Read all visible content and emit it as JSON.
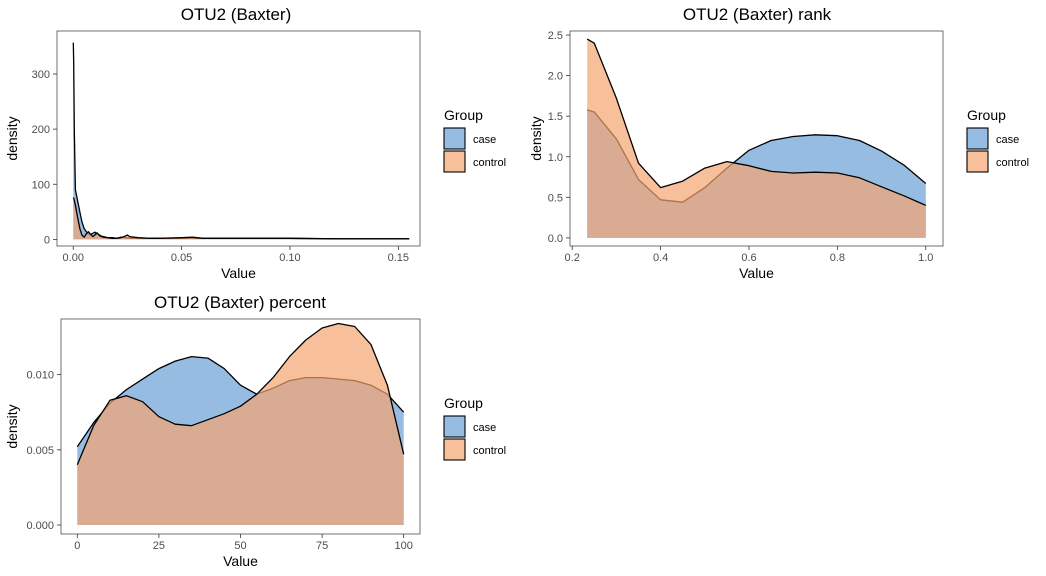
{
  "colors": {
    "case": "#6B9FD6",
    "control": "#F5A470",
    "fill_alpha": 0.7,
    "line": "#000000"
  },
  "legend": {
    "title": "Group",
    "placement": "right"
  },
  "chart_data": [
    {
      "type": "area",
      "title": "OTU2 (Baxter)",
      "xlabel": "Value",
      "ylabel": "density",
      "grid": false,
      "xlim": [
        -0.0075,
        0.16
      ],
      "ylim": [
        -12,
        378
      ],
      "xticks": [
        0.0,
        0.05,
        0.1,
        0.15
      ],
      "xtick_labels": [
        "0.00",
        "0.05",
        "0.10",
        "0.15"
      ],
      "yticks": [
        0,
        100,
        200,
        300
      ],
      "ytick_labels": [
        "0",
        "100",
        "200",
        "300"
      ],
      "legend": [
        "case",
        "control"
      ],
      "series": [
        {
          "name": "case",
          "x": [
            0,
            0.0002,
            0.0005,
            0.001,
            0.002,
            0.003,
            0.004,
            0.005,
            0.006,
            0.007,
            0.008,
            0.009,
            0.01,
            0.011,
            0.012,
            0.013,
            0.014,
            0.015,
            0.016,
            0.018,
            0.02,
            0.022,
            0.024,
            0.026,
            0.03,
            0.035,
            0.04,
            0.05,
            0.06,
            0.07,
            0.08,
            0.09,
            0.1,
            0.12,
            0.14,
            0.155
          ],
          "y": [
            357,
            320,
            200,
            90,
            70,
            50,
            32,
            20,
            14,
            10,
            9,
            11,
            13,
            10,
            8,
            6,
            5,
            4,
            3,
            3,
            2,
            4,
            3,
            2,
            2,
            2,
            2,
            2,
            2,
            2,
            2,
            2,
            2,
            1,
            1,
            1
          ]
        },
        {
          "name": "control",
          "x": [
            0,
            0.0003,
            0.001,
            0.002,
            0.003,
            0.004,
            0.005,
            0.006,
            0.007,
            0.008,
            0.009,
            0.01,
            0.011,
            0.012,
            0.013,
            0.014,
            0.016,
            0.018,
            0.02,
            0.022,
            0.024,
            0.025,
            0.026,
            0.03,
            0.035,
            0.04,
            0.05,
            0.055,
            0.06,
            0.07,
            0.08,
            0.09,
            0.1,
            0.12,
            0.14,
            0.155
          ],
          "y": [
            76,
            74,
            62,
            40,
            20,
            8,
            4,
            10,
            14,
            9,
            5,
            8,
            12,
            7,
            5,
            4,
            3,
            2,
            2,
            3,
            6,
            8,
            5,
            3,
            2,
            2,
            3,
            4,
            2,
            2,
            2,
            2,
            2,
            1,
            1,
            1
          ]
        }
      ]
    },
    {
      "type": "area",
      "title": "OTU2 (Baxter) rank",
      "xlabel": "Value",
      "ylabel": "density",
      "grid": false,
      "xlim": [
        0.195,
        1.039
      ],
      "ylim": [
        -0.1,
        2.55
      ],
      "xticks": [
        0.2,
        0.4,
        0.6,
        0.8,
        1.0
      ],
      "xtick_labels": [
        "0.2",
        "0.4",
        "0.6",
        "0.8",
        "1.0"
      ],
      "yticks": [
        0.0,
        0.5,
        1.0,
        1.5,
        2.0,
        2.5
      ],
      "ytick_labels": [
        "0.0",
        "0.5",
        "1.0",
        "1.5",
        "2.0",
        "2.5"
      ],
      "legend": [
        "case",
        "control"
      ],
      "series": [
        {
          "name": "case",
          "x": [
            0.234,
            0.25,
            0.3,
            0.35,
            0.4,
            0.45,
            0.5,
            0.55,
            0.6,
            0.65,
            0.7,
            0.75,
            0.8,
            0.85,
            0.9,
            0.95,
            1.0
          ],
          "y": [
            1.58,
            1.55,
            1.22,
            0.72,
            0.47,
            0.44,
            0.62,
            0.86,
            1.08,
            1.2,
            1.25,
            1.27,
            1.26,
            1.2,
            1.07,
            0.9,
            0.67
          ]
        },
        {
          "name": "control",
          "x": [
            0.234,
            0.25,
            0.3,
            0.35,
            0.4,
            0.45,
            0.5,
            0.55,
            0.6,
            0.65,
            0.7,
            0.75,
            0.8,
            0.85,
            0.9,
            0.95,
            1.0
          ],
          "y": [
            2.45,
            2.4,
            1.72,
            0.92,
            0.62,
            0.7,
            0.86,
            0.94,
            0.89,
            0.82,
            0.8,
            0.81,
            0.8,
            0.74,
            0.63,
            0.52,
            0.4
          ]
        }
      ]
    },
    {
      "type": "area",
      "title": "OTU2 (Baxter) percent",
      "xlabel": "Value",
      "ylabel": "density",
      "grid": false,
      "xlim": [
        -5,
        105
      ],
      "ylim": [
        -0.0006,
        0.0137
      ],
      "xticks": [
        0,
        25,
        50,
        75,
        100
      ],
      "xtick_labels": [
        "0",
        "25",
        "50",
        "75",
        "100"
      ],
      "yticks": [
        0.0,
        0.005,
        0.01
      ],
      "ytick_labels": [
        "0.000",
        "0.005",
        "0.010"
      ],
      "legend": [
        "case",
        "control"
      ],
      "series": [
        {
          "name": "case",
          "x": [
            0,
            5,
            10,
            15,
            20,
            25,
            30,
            35,
            40,
            45,
            50,
            55,
            60,
            65,
            70,
            75,
            80,
            85,
            90,
            95,
            100
          ],
          "y": [
            0.0052,
            0.0068,
            0.0081,
            0.009,
            0.0097,
            0.0104,
            0.0109,
            0.0112,
            0.0111,
            0.0104,
            0.0093,
            0.0087,
            0.0091,
            0.0096,
            0.0098,
            0.0098,
            0.0097,
            0.0096,
            0.0093,
            0.0087,
            0.0075
          ]
        },
        {
          "name": "control",
          "x": [
            0,
            5,
            10,
            15,
            20,
            25,
            30,
            35,
            40,
            45,
            50,
            55,
            60,
            65,
            70,
            75,
            80,
            85,
            90,
            95,
            100
          ],
          "y": [
            0.004,
            0.0066,
            0.0083,
            0.0086,
            0.0082,
            0.0072,
            0.0067,
            0.0066,
            0.007,
            0.0074,
            0.0079,
            0.0087,
            0.0098,
            0.0112,
            0.0123,
            0.0131,
            0.0134,
            0.0132,
            0.012,
            0.0093,
            0.0047
          ]
        }
      ]
    }
  ]
}
